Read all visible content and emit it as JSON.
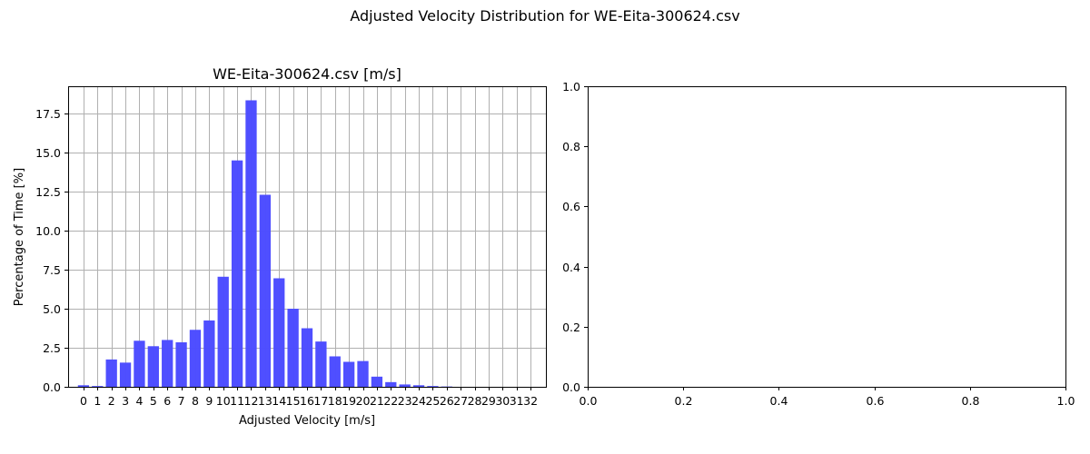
{
  "figure": {
    "suptitle": "Adjusted Velocity Distribution for WE-Eita-300624.csv"
  },
  "chart_data": [
    {
      "type": "bar",
      "title": "WE-Eita-300624.csv [m/s]",
      "xlabel": "Adjusted Velocity [m/s]",
      "ylabel": "Percentage of Time [%]",
      "categories": [
        "0",
        "1",
        "2",
        "3",
        "4",
        "5",
        "6",
        "7",
        "8",
        "9",
        "10",
        "11",
        "12",
        "13",
        "14",
        "15",
        "16",
        "17",
        "18",
        "19",
        "20",
        "21",
        "22",
        "23",
        "24",
        "25",
        "26",
        "27",
        "28",
        "29",
        "30",
        "31",
        "32"
      ],
      "values": [
        0.1,
        0.05,
        1.75,
        1.55,
        2.95,
        2.6,
        3.0,
        2.85,
        3.65,
        4.25,
        7.05,
        14.5,
        18.35,
        12.3,
        6.95,
        5.0,
        3.75,
        2.9,
        1.95,
        1.6,
        1.65,
        0.65,
        0.3,
        0.15,
        0.1,
        0.05,
        0.02,
        0,
        0,
        0,
        0,
        0,
        0
      ],
      "ylim": [
        0,
        19.25
      ],
      "yticks": [
        0.0,
        2.5,
        5.0,
        7.5,
        10.0,
        12.5,
        15.0,
        17.5
      ],
      "ytick_labels": [
        "0.0",
        "2.5",
        "5.0",
        "7.5",
        "10.0",
        "12.5",
        "15.0",
        "17.5"
      ],
      "bar_color": "#4b4bff",
      "grid": true
    },
    {
      "type": "scatter",
      "title": "",
      "xlabel": "",
      "ylabel": "",
      "xlim": [
        0,
        1
      ],
      "ylim": [
        0,
        1
      ],
      "xtick_labels": [
        "0.0",
        "0.2",
        "0.4",
        "0.6",
        "0.8",
        "1.0"
      ],
      "ytick_labels": [
        "0.0",
        "0.2",
        "0.4",
        "0.6",
        "0.8",
        "1.0"
      ],
      "grid": false
    }
  ]
}
